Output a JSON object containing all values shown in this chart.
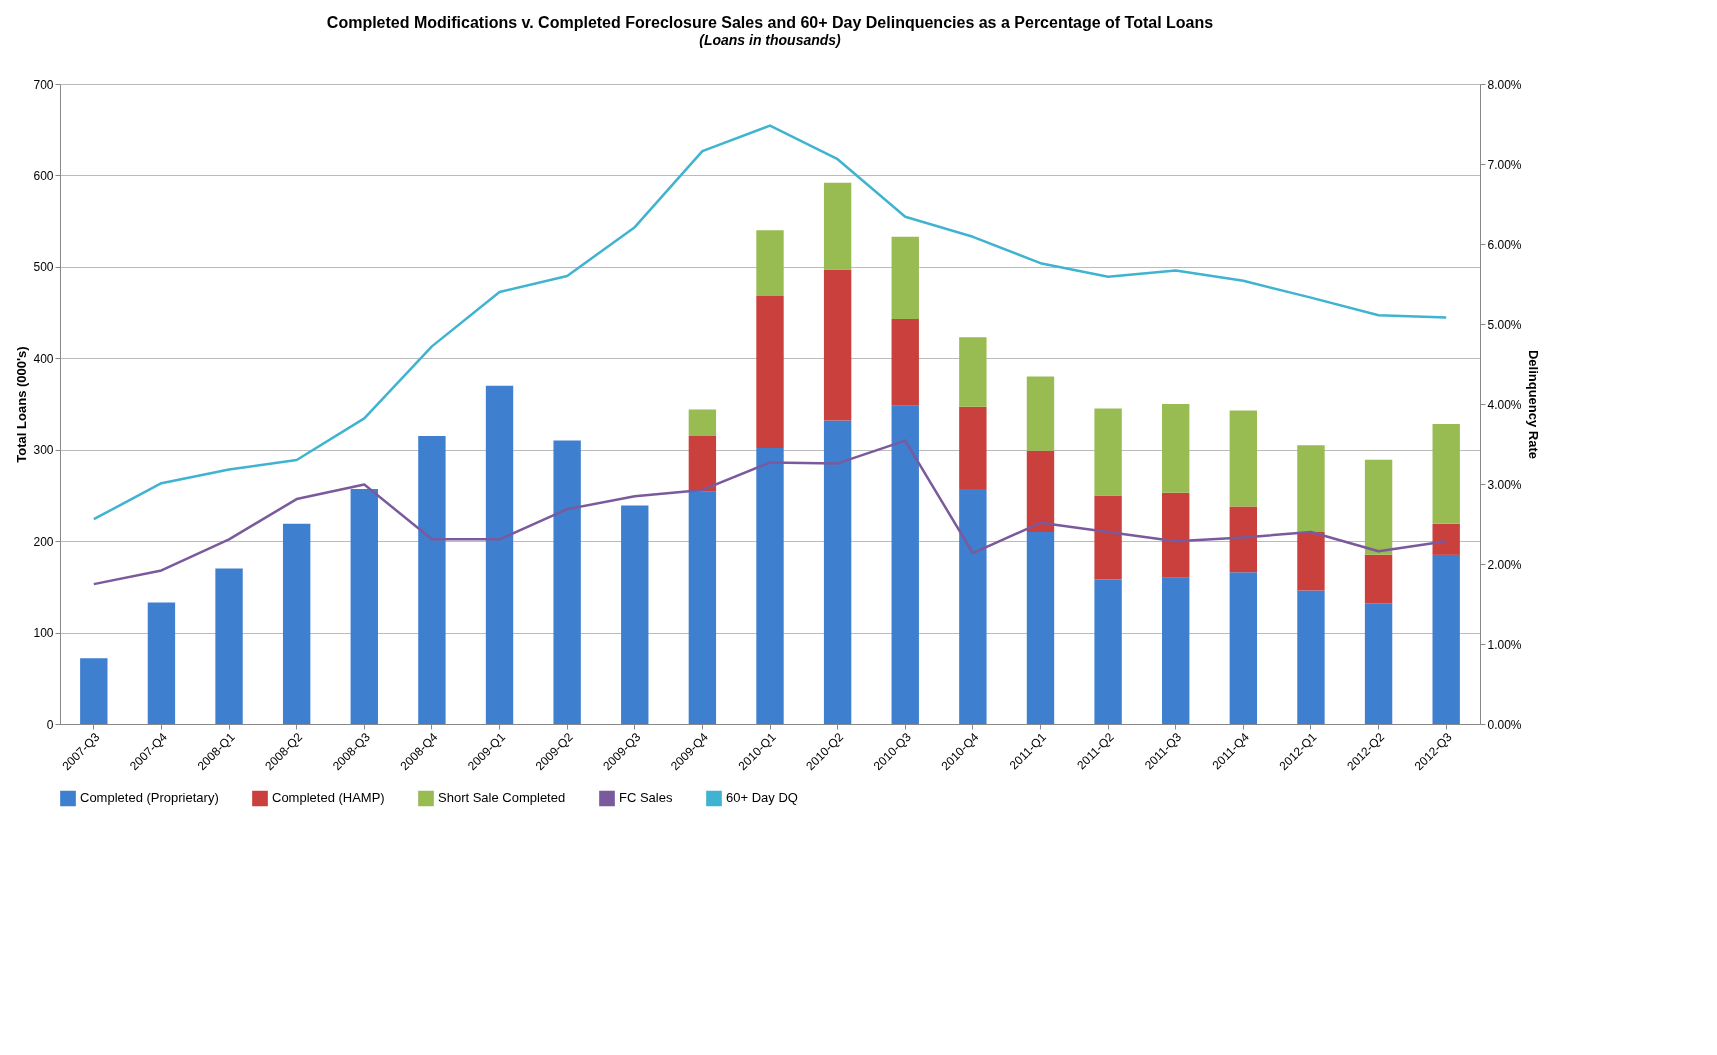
{
  "chart_data": {
    "type": "bar",
    "title": "Completed Modifications v. Completed Foreclosure Sales and 60+ Day Delinquencies as a Percentage of Total Loans",
    "subtitle": "(Loans in thousands)",
    "ylabel": "Total Loans (000's)",
    "y2label": "Delinquency Rate",
    "categories": [
      "2007-Q3",
      "2007-Q4",
      "2008-Q1",
      "2008-Q2",
      "2008-Q3",
      "2008-Q4",
      "2009-Q1",
      "2009-Q2",
      "2009-Q3",
      "2009-Q4",
      "2010-Q1",
      "2010-Q2",
      "2010-Q3",
      "2010-Q4",
      "2011-Q1",
      "2011-Q2",
      "2011-Q3",
      "2011-Q4",
      "2012-Q1",
      "2012-Q2",
      "2012-Q3"
    ],
    "stacked": true,
    "series": [
      {
        "name": "Completed (Proprietary)",
        "color": "#3f7fcf",
        "values": [
          72,
          133,
          170,
          219,
          257,
          315,
          370,
          310,
          239,
          254,
          302,
          332,
          348,
          257,
          210,
          158,
          160,
          166,
          146,
          132,
          185
        ]
      },
      {
        "name": "Completed (HAMP)",
        "color": "#c9403c",
        "values": [
          null,
          null,
          null,
          null,
          null,
          null,
          null,
          null,
          null,
          61,
          166,
          165,
          95,
          90,
          89,
          92,
          93,
          72,
          64,
          53,
          34
        ]
      },
      {
        "name": "Short Sale Completed",
        "color": "#98bb52",
        "values": [
          null,
          null,
          null,
          null,
          null,
          null,
          null,
          null,
          null,
          29,
          72,
          95,
          90,
          76,
          81,
          95,
          97,
          105,
          95,
          104,
          109
        ]
      },
      {
        "name": "FC Sales",
        "type": "line",
        "color": "#7a5a9c",
        "values": [
          153,
          168,
          202,
          246,
          262,
          202,
          202,
          235,
          249,
          256,
          286,
          285,
          310,
          187,
          220,
          210,
          200,
          204,
          210,
          189,
          200
        ]
      },
      {
        "name": "60+ Day DQ",
        "type": "line",
        "axis": "y2",
        "color": "#3fb3cf",
        "values": [
          2.56,
          3.01,
          3.18,
          3.3,
          3.82,
          4.72,
          5.4,
          5.6,
          6.21,
          7.16,
          7.48,
          7.06,
          6.34,
          6.09,
          5.76,
          5.59,
          5.67,
          5.54,
          5.33,
          5.11,
          5.08
        ]
      }
    ],
    "ylim": [
      0,
      700
    ],
    "yticks": [
      0,
      100,
      200,
      300,
      400,
      500,
      600,
      700
    ],
    "y2lim": [
      0,
      8
    ],
    "y2ticks": [
      {
        "value": 0,
        "label": "0.00%"
      },
      {
        "value": 1,
        "label": "1.00%"
      },
      {
        "value": 2,
        "label": "2.00%"
      },
      {
        "value": 3,
        "label": "3.00%"
      },
      {
        "value": 4,
        "label": "4.00%"
      },
      {
        "value": 5,
        "label": "5.00%"
      },
      {
        "value": 6,
        "label": "6.00%"
      },
      {
        "value": 7,
        "label": "7.00%"
      },
      {
        "value": 8,
        "label": "8.00%"
      }
    ],
    "grid": "y",
    "legend": "bottom"
  }
}
